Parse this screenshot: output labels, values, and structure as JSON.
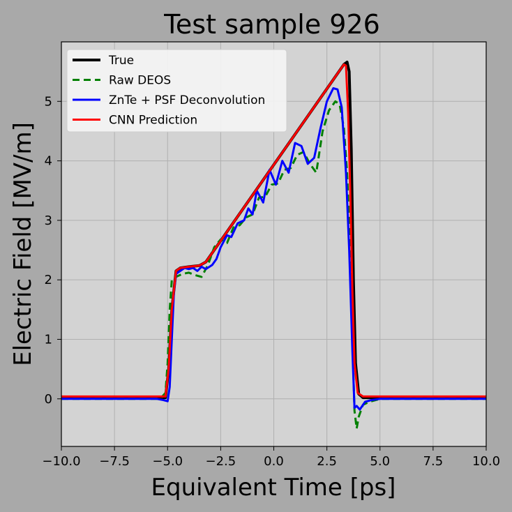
{
  "chart_data": {
    "type": "line",
    "title": "Test sample 926",
    "xlabel": "Equivalent Time [ps]",
    "ylabel": "Electric Field [MV/m]",
    "xlim": [
      -10.0,
      10.0
    ],
    "ylim": [
      -0.8,
      6.0
    ],
    "xticks": [
      -10.0,
      -7.5,
      -5.0,
      -2.5,
      0.0,
      2.5,
      5.0,
      7.5,
      10.0
    ],
    "xtick_labels": [
      "−10.0",
      "−7.5",
      "−5.0",
      "−2.5",
      "0.0",
      "2.5",
      "5.0",
      "7.5",
      "10.0"
    ],
    "yticks": [
      0,
      1,
      2,
      3,
      4,
      5
    ],
    "ytick_labels": [
      "0",
      "1",
      "2",
      "3",
      "4",
      "5"
    ],
    "grid": true,
    "legend_position": "top-left",
    "background_color": "#a9a9a9",
    "plot_background_color": "#d3d3d3",
    "series": [
      {
        "name": "True",
        "color": "#000000",
        "style": "solid",
        "x": [
          -10,
          -5.1,
          -4.95,
          -4.8,
          -4.6,
          -4.4,
          -4.0,
          -3.5,
          -3.2,
          3.3,
          3.45,
          3.55,
          3.65,
          3.75,
          3.85,
          4.0,
          4.2,
          10
        ],
        "y": [
          0.02,
          0.02,
          0.5,
          1.5,
          2.15,
          2.2,
          2.22,
          2.24,
          2.3,
          5.62,
          5.66,
          5.5,
          4.2,
          2.0,
          0.6,
          0.08,
          0.02,
          0.02
        ]
      },
      {
        "name": "Raw DEOS",
        "color": "#008000",
        "style": "dashed",
        "x": [
          -10,
          -5.5,
          -5.3,
          -5.1,
          -5.0,
          -4.9,
          -4.8,
          -4.6,
          -4.3,
          -4.0,
          -3.7,
          -3.4,
          -3.1,
          -2.8,
          -2.5,
          -2.2,
          -1.9,
          -1.6,
          -1.3,
          -1.0,
          -0.7,
          -0.4,
          -0.1,
          0.2,
          0.5,
          0.8,
          1.1,
          1.4,
          1.7,
          2.0,
          2.3,
          2.6,
          2.9,
          3.1,
          3.3,
          3.45,
          3.6,
          3.7,
          3.8,
          3.9,
          4.0,
          4.2,
          4.5,
          5.0,
          10
        ],
        "y": [
          0.0,
          0.0,
          0.02,
          0.1,
          0.6,
          1.5,
          2.0,
          2.05,
          2.1,
          2.12,
          2.08,
          2.05,
          2.25,
          2.55,
          2.68,
          2.62,
          2.88,
          2.92,
          3.05,
          3.1,
          3.38,
          3.4,
          3.6,
          3.62,
          3.85,
          3.88,
          4.1,
          4.15,
          3.95,
          3.8,
          4.5,
          4.85,
          5.0,
          4.95,
          4.55,
          3.8,
          2.5,
          1.0,
          -0.2,
          -0.5,
          -0.3,
          -0.1,
          -0.05,
          0.0,
          0.0
        ]
      },
      {
        "name": "ZnTe + PSF Deconvolution",
        "color": "#0000ff",
        "style": "solid",
        "x": [
          -10,
          -5.5,
          -5.2,
          -5.0,
          -4.9,
          -4.8,
          -4.7,
          -4.6,
          -4.4,
          -4.2,
          -4.0,
          -3.8,
          -3.6,
          -3.4,
          -3.2,
          -2.9,
          -2.7,
          -2.5,
          -2.2,
          -2.0,
          -1.7,
          -1.4,
          -1.2,
          -1.0,
          -0.8,
          -0.5,
          -0.2,
          0.1,
          0.4,
          0.7,
          1.0,
          1.3,
          1.6,
          1.9,
          2.2,
          2.5,
          2.8,
          3.0,
          3.2,
          3.4,
          3.55,
          3.7,
          3.8,
          3.9,
          4.05,
          4.3,
          4.6,
          5.0,
          10
        ],
        "y": [
          0.0,
          0.0,
          -0.02,
          -0.04,
          0.2,
          1.0,
          1.8,
          2.1,
          2.15,
          2.2,
          2.18,
          2.2,
          2.15,
          2.22,
          2.18,
          2.25,
          2.35,
          2.55,
          2.75,
          2.72,
          2.95,
          3.0,
          3.2,
          3.1,
          3.5,
          3.3,
          3.85,
          3.6,
          4.0,
          3.8,
          4.3,
          4.25,
          3.95,
          4.05,
          4.55,
          5.0,
          5.22,
          5.2,
          4.9,
          3.8,
          2.5,
          0.8,
          -0.15,
          -0.12,
          -0.18,
          -0.05,
          -0.02,
          0.0,
          0.0
        ]
      },
      {
        "name": "CNN Prediction",
        "color": "#ff0000",
        "style": "solid",
        "x": [
          -10,
          -5.1,
          -4.95,
          -4.8,
          -4.6,
          -4.4,
          -4.0,
          -3.5,
          -3.2,
          3.3,
          3.4,
          3.5,
          3.6,
          3.7,
          3.8,
          3.95,
          4.2,
          10
        ],
        "y": [
          0.04,
          0.04,
          0.5,
          1.5,
          2.15,
          2.2,
          2.22,
          2.24,
          2.3,
          5.62,
          5.6,
          4.8,
          3.5,
          1.8,
          0.6,
          0.1,
          0.04,
          0.04
        ]
      }
    ]
  }
}
